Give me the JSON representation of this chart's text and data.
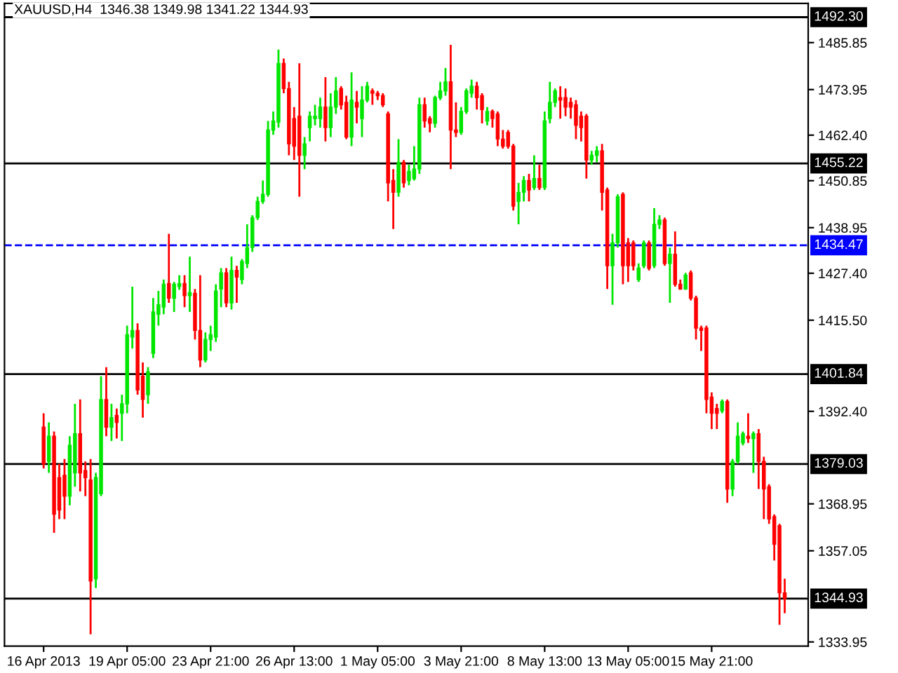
{
  "chart_data": {
    "type": "candlestick",
    "title": "XAUUSD,H4  1346.38 1349.98 1341.22 1344.93",
    "categories": [
      "16 Apr 2013",
      null,
      null,
      null,
      null,
      null,
      null,
      null,
      null,
      null,
      null,
      null,
      null,
      null,
      null,
      null,
      "19 Apr 05:00",
      null,
      null,
      null,
      null,
      null,
      null,
      null,
      null,
      null,
      null,
      null,
      null,
      null,
      null,
      null,
      "23 Apr 21:00",
      null,
      null,
      null,
      null,
      null,
      null,
      null,
      null,
      null,
      null,
      null,
      null,
      null,
      null,
      null,
      "26 Apr 13:00",
      null,
      null,
      null,
      null,
      null,
      null,
      null,
      null,
      null,
      null,
      null,
      null,
      null,
      null,
      null,
      "1 May 05:00",
      null,
      null,
      null,
      null,
      null,
      null,
      null,
      null,
      null,
      null,
      null,
      null,
      null,
      null,
      null,
      "3 May 21:00",
      null,
      null,
      null,
      null,
      null,
      null,
      null,
      null,
      null,
      null,
      null,
      null,
      null,
      null,
      null,
      "8 May 13:00",
      null,
      null,
      null,
      null,
      null,
      null,
      null,
      null,
      null,
      null,
      null,
      null,
      null,
      null,
      null,
      "13 May 05:00",
      null,
      null,
      null,
      null,
      null,
      null,
      null,
      null,
      null,
      null,
      null,
      null,
      null,
      null,
      null,
      "15 May 21:00",
      null,
      null,
      null,
      null,
      null,
      null,
      null,
      null,
      null,
      null,
      null,
      null,
      null,
      null
    ],
    "ohlc": [
      [
        1388.4,
        1391.9,
        1377.9,
        1379.1
      ],
      [
        1379.7,
        1389.6,
        1376.8,
        1386.1
      ],
      [
        1386.1,
        1387.3,
        1361.6,
        1366.3
      ],
      [
        1375.6,
        1379.1,
        1365.1,
        1367.4
      ],
      [
        1376.2,
        1380.3,
        1365.1,
        1370.9
      ],
      [
        1370.9,
        1386.1,
        1368.6,
        1383.8
      ],
      [
        1376.8,
        1394.3,
        1373.3,
        1386.7
      ],
      [
        1386.7,
        1395.4,
        1372.1,
        1376.8
      ],
      [
        1377.4,
        1379.7,
        1370.9,
        1375.6
      ],
      [
        1375.0,
        1380.3,
        1335.9,
        1349.4
      ],
      [
        1349.9,
        1376.8,
        1347.6,
        1375.6
      ],
      [
        1371.5,
        1401.3,
        1370.9,
        1395.4
      ],
      [
        1395.4,
        1403.6,
        1386.1,
        1388.4
      ],
      [
        1388.4,
        1394.3,
        1384.9,
        1390.8
      ],
      [
        1391.4,
        1393.1,
        1385.5,
        1389.6
      ],
      [
        1391.9,
        1396.6,
        1384.9,
        1394.3
      ],
      [
        1394.3,
        1414.1,
        1391.9,
        1411.8
      ],
      [
        1411.2,
        1424.0,
        1408.3,
        1412.9
      ],
      [
        1412.9,
        1414.7,
        1396.6,
        1397.8
      ],
      [
        1401.3,
        1404.8,
        1390.8,
        1395.4
      ],
      [
        1396.6,
        1403.6,
        1394.3,
        1402.4
      ],
      [
        1407.1,
        1421.1,
        1405.9,
        1417.6
      ],
      [
        1417.0,
        1422.9,
        1414.1,
        1419.4
      ],
      [
        1418.8,
        1425.8,
        1417.0,
        1424.6
      ],
      [
        1424.8,
        1437.4,
        1419.9,
        1421.1
      ],
      [
        1421.1,
        1425.2,
        1417.6,
        1424.6
      ],
      [
        1424.0,
        1426.9,
        1423.2,
        1424.8
      ],
      [
        1424.8,
        1426.9,
        1418.8,
        1421.7
      ],
      [
        1421.7,
        1431.6,
        1417.6,
        1422.5
      ],
      [
        1422.3,
        1423.4,
        1410.6,
        1412.9
      ],
      [
        1412.9,
        1426.9,
        1403.6,
        1405.4
      ],
      [
        1405.4,
        1412.4,
        1404.8,
        1410.6
      ],
      [
        1410.6,
        1414.1,
        1407.7,
        1411.8
      ],
      [
        1411.2,
        1424.6,
        1410.0,
        1422.9
      ],
      [
        1423.4,
        1428.7,
        1418.8,
        1427.5
      ],
      [
        1427.5,
        1428.7,
        1418.8,
        1419.9
      ],
      [
        1419.9,
        1431.6,
        1418.2,
        1428.1
      ],
      [
        1428.1,
        1429.3,
        1419.9,
        1426.4
      ],
      [
        1425.8,
        1431.0,
        1424.6,
        1430.4
      ],
      [
        1429.9,
        1439.8,
        1428.7,
        1433.9
      ],
      [
        1433.9,
        1442.1,
        1432.8,
        1441.5
      ],
      [
        1441.5,
        1446.8,
        1440.9,
        1445.6
      ],
      [
        1445.6,
        1450.9,
        1445.0,
        1447.4
      ],
      [
        1447.4,
        1466.0,
        1446.8,
        1463.7
      ],
      [
        1463.7,
        1468.4,
        1462.5,
        1466.0
      ],
      [
        1465.7,
        1484.1,
        1464.3,
        1480.6
      ],
      [
        1480.6,
        1481.8,
        1473.0,
        1474.2
      ],
      [
        1474.2,
        1475.9,
        1457.3,
        1460.2
      ],
      [
        1466.6,
        1469.5,
        1456.1,
        1459.6
      ],
      [
        1467.2,
        1480.6,
        1446.8,
        1457.3
      ],
      [
        1457.3,
        1461.9,
        1453.8,
        1460.2
      ],
      [
        1464.3,
        1468.4,
        1460.8,
        1467.2
      ],
      [
        1466.6,
        1470.1,
        1464.9,
        1467.2
      ],
      [
        1466.6,
        1471.9,
        1464.3,
        1469.5
      ],
      [
        1469.5,
        1477.1,
        1460.8,
        1464.3
      ],
      [
        1464.3,
        1473.0,
        1461.9,
        1469.5
      ],
      [
        1469.5,
        1477.1,
        1467.8,
        1473.6
      ],
      [
        1474.2,
        1474.8,
        1468.9,
        1470.1
      ],
      [
        1470.7,
        1472.4,
        1461.4,
        1461.9
      ],
      [
        1461.9,
        1478.3,
        1459.6,
        1471.3
      ],
      [
        1470.7,
        1473.6,
        1465.4,
        1469.5
      ],
      [
        1466.6,
        1474.8,
        1461.9,
        1471.3
      ],
      [
        1471.3,
        1475.9,
        1470.7,
        1474.8
      ],
      [
        1473.6,
        1474.2,
        1470.1,
        1473.0
      ],
      [
        1473.0,
        1473.6,
        1471.3,
        1472.4
      ],
      [
        1472.4,
        1473.0,
        1469.5,
        1470.1
      ],
      [
        1467.8,
        1468.4,
        1445.6,
        1450.3
      ],
      [
        1450.9,
        1453.8,
        1438.6,
        1447.9
      ],
      [
        1447.9,
        1461.4,
        1446.8,
        1455.5
      ],
      [
        1455.5,
        1456.1,
        1449.1,
        1450.3
      ],
      [
        1450.9,
        1454.9,
        1449.7,
        1453.2
      ],
      [
        1451.4,
        1459.6,
        1450.9,
        1453.8
      ],
      [
        1453.8,
        1471.9,
        1452.6,
        1470.1
      ],
      [
        1470.1,
        1471.9,
        1464.3,
        1466.0
      ],
      [
        1466.6,
        1467.2,
        1463.1,
        1465.4
      ],
      [
        1465.4,
        1472.4,
        1464.3,
        1471.9
      ],
      [
        1471.9,
        1475.9,
        1471.3,
        1473.6
      ],
      [
        1473.6,
        1479.4,
        1472.4,
        1475.9
      ],
      [
        1475.9,
        1485.3,
        1453.8,
        1463.7
      ],
      [
        1463.7,
        1470.7,
        1461.9,
        1463.1
      ],
      [
        1463.1,
        1469.5,
        1462.5,
        1468.4
      ],
      [
        1468.4,
        1474.2,
        1467.8,
        1473.6
      ],
      [
        1473.0,
        1476.5,
        1471.9,
        1474.8
      ],
      [
        1474.8,
        1475.9,
        1468.9,
        1471.9
      ],
      [
        1472.4,
        1473.0,
        1465.4,
        1468.9
      ],
      [
        1466.0,
        1469.5,
        1464.9,
        1468.4
      ],
      [
        1468.4,
        1468.9,
        1464.3,
        1466.6
      ],
      [
        1467.8,
        1468.4,
        1459.6,
        1461.4
      ],
      [
        1461.4,
        1463.7,
        1459.0,
        1459.6
      ],
      [
        1463.1,
        1463.7,
        1459.0,
        1459.6
      ],
      [
        1459.6,
        1460.2,
        1443.3,
        1444.4
      ],
      [
        1445.6,
        1450.3,
        1439.8,
        1447.9
      ],
      [
        1447.9,
        1452.0,
        1445.6,
        1450.9
      ],
      [
        1450.9,
        1452.6,
        1445.6,
        1448.5
      ],
      [
        1449.1,
        1457.3,
        1448.5,
        1451.4
      ],
      [
        1451.4,
        1454.9,
        1448.5,
        1449.1
      ],
      [
        1449.1,
        1468.4,
        1448.5,
        1466.0
      ],
      [
        1466.6,
        1475.9,
        1465.4,
        1470.7
      ],
      [
        1470.7,
        1474.2,
        1469.5,
        1473.6
      ],
      [
        1471.9,
        1474.8,
        1466.6,
        1471.3
      ],
      [
        1471.9,
        1474.2,
        1467.2,
        1469.5
      ],
      [
        1470.7,
        1471.9,
        1466.6,
        1469.5
      ],
      [
        1470.1,
        1471.3,
        1461.4,
        1464.9
      ],
      [
        1467.2,
        1468.4,
        1460.8,
        1464.3
      ],
      [
        1467.2,
        1467.8,
        1451.4,
        1456.1
      ],
      [
        1456.1,
        1458.4,
        1454.9,
        1457.3
      ],
      [
        1457.3,
        1459.6,
        1455.5,
        1458.4
      ],
      [
        1458.4,
        1460.2,
        1443.3,
        1447.9
      ],
      [
        1448.5,
        1449.1,
        1423.4,
        1429.3
      ],
      [
        1429.3,
        1437.4,
        1419.4,
        1435.1
      ],
      [
        1435.1,
        1447.4,
        1433.9,
        1446.8
      ],
      [
        1447.4,
        1447.9,
        1424.6,
        1429.3
      ],
      [
        1435.1,
        1436.3,
        1425.2,
        1429.3
      ],
      [
        1435.1,
        1435.7,
        1428.1,
        1429.3
      ],
      [
        1425.8,
        1429.9,
        1425.2,
        1428.7
      ],
      [
        1429.3,
        1435.7,
        1428.7,
        1435.1
      ],
      [
        1435.1,
        1435.7,
        1428.1,
        1428.7
      ],
      [
        1429.3,
        1443.9,
        1428.7,
        1439.8
      ],
      [
        1439.8,
        1442.1,
        1438.6,
        1440.9
      ],
      [
        1440.9,
        1441.5,
        1429.3,
        1429.9
      ],
      [
        1429.9,
        1433.9,
        1419.9,
        1432.2
      ],
      [
        1432.2,
        1438.0,
        1424.0,
        1424.6
      ],
      [
        1424.6,
        1425.8,
        1423.2,
        1423.4
      ],
      [
        1423.4,
        1427.5,
        1423.2,
        1426.9
      ],
      [
        1427.5,
        1428.1,
        1420.5,
        1421.1
      ],
      [
        1421.1,
        1421.7,
        1410.6,
        1413.5
      ],
      [
        1413.5,
        1414.1,
        1407.7,
        1412.9
      ],
      [
        1413.5,
        1414.1,
        1391.9,
        1395.4
      ],
      [
        1396.0,
        1397.2,
        1387.9,
        1391.9
      ],
      [
        1393.1,
        1394.3,
        1387.9,
        1391.9
      ],
      [
        1392.5,
        1395.4,
        1391.9,
        1394.9
      ],
      [
        1394.9,
        1395.4,
        1369.2,
        1372.7
      ],
      [
        1372.7,
        1380.3,
        1370.9,
        1379.7
      ],
      [
        1379.7,
        1389.6,
        1379.1,
        1386.1
      ],
      [
        1384.4,
        1387.3,
        1383.8,
        1386.7
      ],
      [
        1386.1,
        1391.9,
        1384.4,
        1385.5
      ],
      [
        1385.5,
        1387.3,
        1376.8,
        1386.7
      ],
      [
        1386.7,
        1387.9,
        1372.7,
        1379.7
      ],
      [
        1379.7,
        1380.9,
        1365.1,
        1372.7
      ],
      [
        1373.3,
        1373.9,
        1363.9,
        1365.1
      ],
      [
        1365.7,
        1366.3,
        1354.6,
        1358.7
      ],
      [
        1363.4,
        1363.9,
        1338.3,
        1346.4
      ],
      [
        1346.38,
        1349.98,
        1341.22,
        1344.93
      ]
    ],
    "ylim": [
      1332.9,
      1495.8
    ],
    "yticks": [
      {
        "value": 1485.85,
        "label": "1485.85"
      },
      {
        "value": 1473.95,
        "label": "1473.95"
      },
      {
        "value": 1462.4,
        "label": "1462.40"
      },
      {
        "value": 1450.85,
        "label": "1450.85"
      },
      {
        "value": 1438.95,
        "label": "1438.95"
      },
      {
        "value": 1427.4,
        "label": "1427.40"
      },
      {
        "value": 1415.5,
        "label": "1415.50"
      },
      {
        "value": 1392.4,
        "label": "1392.40"
      },
      {
        "value": 1368.95,
        "label": "1368.95"
      },
      {
        "value": 1357.05,
        "label": "1357.05"
      },
      {
        "value": 1333.95,
        "label": "1333.95"
      }
    ],
    "ref_lines": [
      {
        "axis": "y",
        "value": 1492.3,
        "label": "1492.30",
        "color": "#000000",
        "line_style": "solid"
      },
      {
        "axis": "y",
        "value": 1455.22,
        "label": "1455.22",
        "color": "#000000",
        "line_style": "solid"
      },
      {
        "axis": "y",
        "value": 1434.47,
        "label": "1434.47",
        "color": "#0000ff",
        "line_style": "dashed"
      },
      {
        "axis": "y",
        "value": 1401.84,
        "label": "1401.84",
        "color": "#000000",
        "line_style": "solid"
      },
      {
        "axis": "y",
        "value": 1379.03,
        "label": "1379.03",
        "color": "#000000",
        "line_style": "solid"
      },
      {
        "axis": "y",
        "value": 1344.93,
        "label": "1344.93",
        "color": "#000000",
        "line_style": "solid"
      }
    ],
    "grid": false,
    "legend": false
  }
}
